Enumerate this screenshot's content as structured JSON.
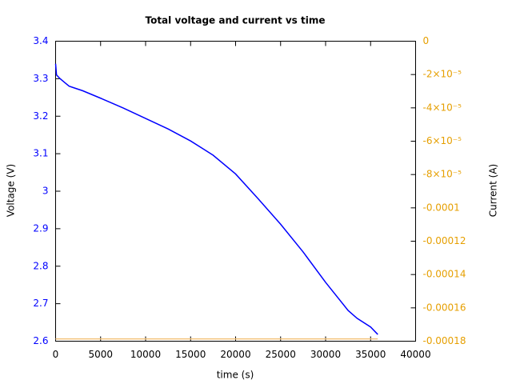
{
  "chart_data": {
    "type": "line",
    "title": "Total voltage and current vs time",
    "x_label": "time (s)",
    "y_label": "Voltage (V)",
    "y2_label": "Current (A)",
    "xlim": [
      0,
      40000
    ],
    "xticks": [
      0,
      5000,
      10000,
      15000,
      20000,
      25000,
      30000,
      35000,
      40000
    ],
    "ylim": [
      2.6,
      3.4
    ],
    "yticks": [
      2.6,
      2.7,
      2.8,
      2.9,
      3,
      3.1,
      3.2,
      3.3,
      3.4
    ],
    "y_color": "#0000ff",
    "y2lim": [
      -0.00018,
      0
    ],
    "y2ticks": [
      0,
      {
        "value": -2e-05,
        "label": "-2×10⁻⁵"
      },
      {
        "value": -4e-05,
        "label": "-4×10⁻⁵"
      },
      {
        "value": -6e-05,
        "label": "-6×10⁻⁵"
      },
      {
        "value": -8e-05,
        "label": "-8×10⁻⁵"
      },
      -0.0001,
      -0.00012,
      -0.00014,
      -0.00016,
      -0.00018
    ],
    "y2_color": "#e69f00",
    "series": [
      {
        "color": "#0000ff",
        "x": [
          0,
          100,
          500,
          1000,
          1500,
          2000,
          3000,
          5000,
          7500,
          10000,
          12500,
          15000,
          17500,
          20000,
          22500,
          25000,
          27500,
          30000,
          32500,
          33500,
          35000,
          35800
        ],
        "values": [
          3.34,
          3.31,
          3.3,
          3.29,
          3.28,
          3.276,
          3.268,
          3.248,
          3.222,
          3.194,
          3.166,
          3.134,
          3.096,
          3.046,
          2.98,
          2.912,
          2.838,
          2.757,
          2.682,
          2.661,
          2.638,
          2.618
        ]
      },
      {
        "color": "#f2c27a",
        "axis": "y2",
        "x": [
          0,
          35800
        ],
        "values": [
          -0.0001786,
          -0.0001786
        ]
      }
    ]
  }
}
